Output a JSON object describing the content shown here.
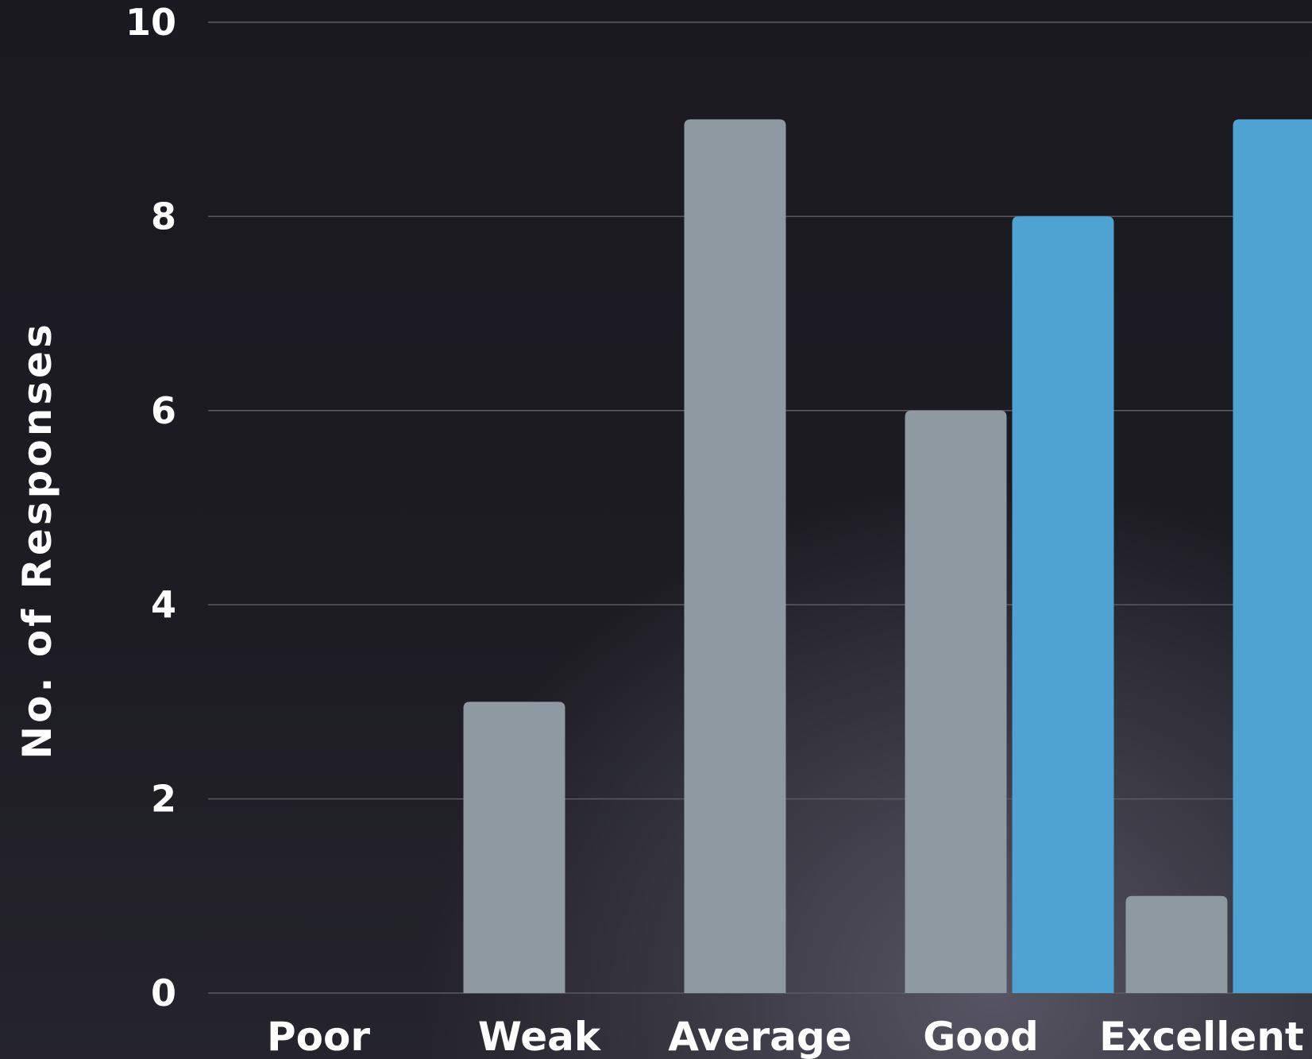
{
  "chart_data": {
    "type": "bar",
    "categories": [
      "Poor",
      "Weak",
      "Average",
      "Good",
      "Excellent"
    ],
    "series": [
      {
        "values": [
          0,
          3,
          9,
          6,
          1
        ],
        "color": "#8e99a2"
      },
      {
        "values": [
          0,
          0,
          0,
          8,
          9
        ],
        "color": "#4fa3d2"
      }
    ],
    "title": "",
    "xlabel": "",
    "ylabel": "No. of Responses",
    "ylim": [
      0,
      10
    ],
    "yticks": [
      "0",
      "2",
      "4",
      "6",
      "8",
      "10"
    ],
    "grid": true,
    "legend": "none"
  },
  "colors": {
    "gridline": "#5b5a63",
    "text": "#ffffff"
  }
}
